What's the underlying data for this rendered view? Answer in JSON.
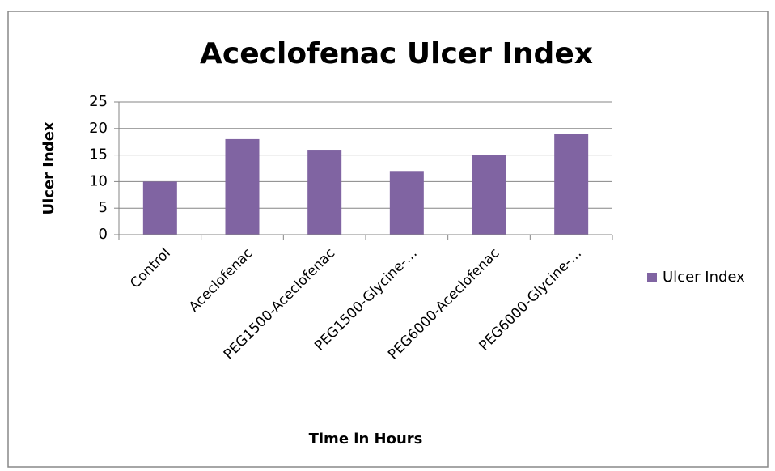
{
  "chart_data": {
    "type": "bar",
    "title": "Aceclofenac Ulcer Index",
    "x_label": "Time in Hours",
    "y_label": "Ulcer Index",
    "categories": [
      "Control",
      "Aceclofenac",
      "PEG1500-Aceclofenac",
      "PEG1500-Glycine-…",
      "PEG6000-Aceclofenac",
      "PEG6000-Glycine-…"
    ],
    "series": [
      {
        "name": "Ulcer Index",
        "color": "#8064a2",
        "values": [
          10,
          18,
          16,
          12,
          15,
          19
        ]
      }
    ],
    "ylim": [
      0,
      25
    ],
    "yticks": [
      0,
      5,
      10,
      15,
      20,
      25
    ],
    "grid": true,
    "legend": "right"
  }
}
